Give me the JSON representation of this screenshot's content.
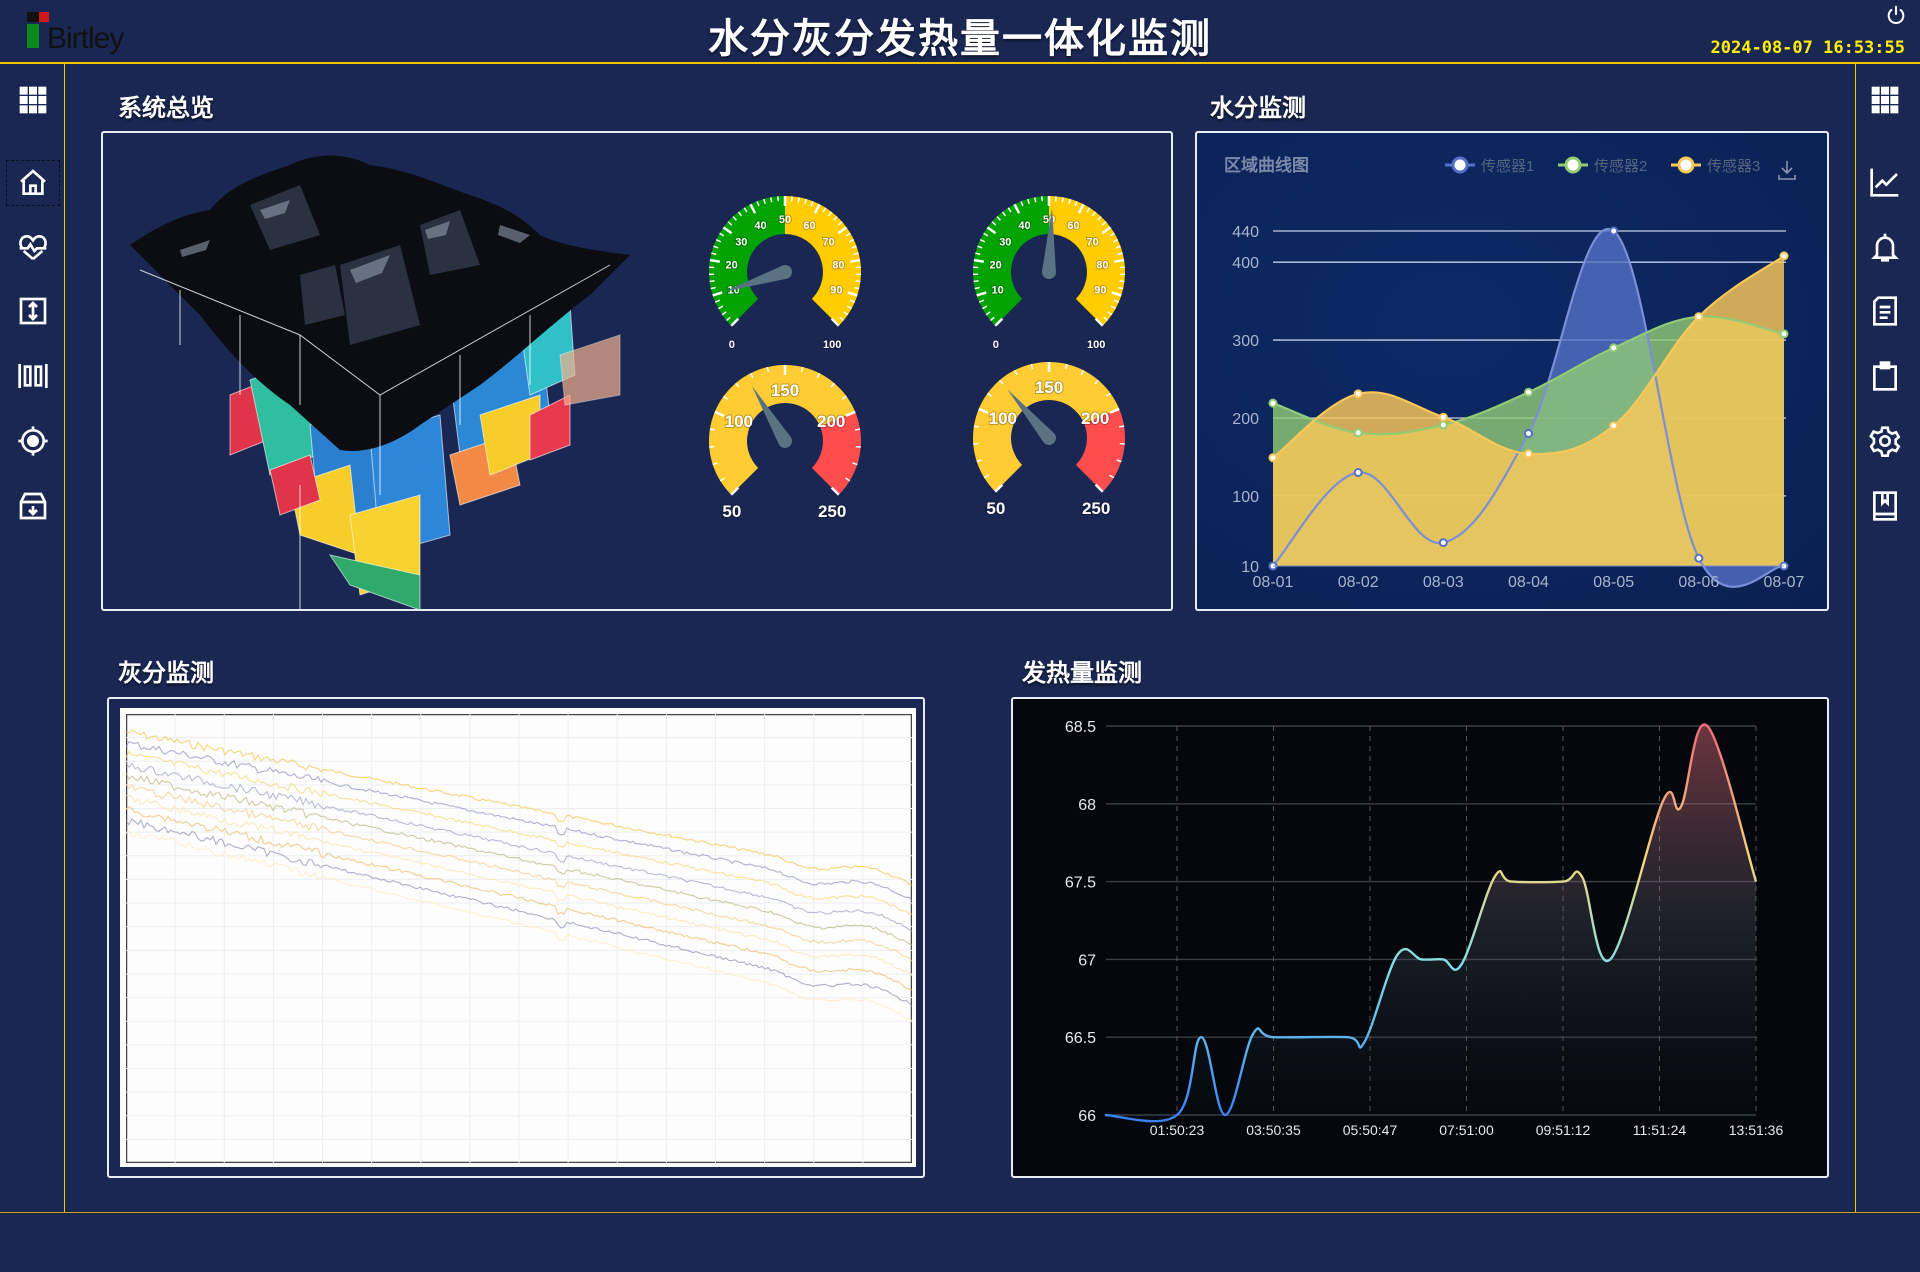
{
  "header": {
    "logo_text": "Birtley",
    "title": "水分灰分发热量一体化监测",
    "datetime": "2024-08-07  16:53:55",
    "power_icon": "power-icon"
  },
  "left_sidebar": {
    "items": [
      {
        "icon": "grid-menu-icon"
      },
      {
        "icon": "home-icon",
        "active": true
      },
      {
        "icon": "heart-pulse-icon"
      },
      {
        "icon": "expand-vertical-icon"
      },
      {
        "icon": "columns-icon"
      },
      {
        "icon": "locate-icon"
      },
      {
        "icon": "archive-download-icon"
      }
    ]
  },
  "right_sidebar": {
    "items": [
      {
        "icon": "grid-menu-icon"
      },
      {
        "icon": "line-chart-icon"
      },
      {
        "icon": "bell-icon"
      },
      {
        "icon": "document-icon"
      },
      {
        "icon": "clipboard-icon"
      },
      {
        "icon": "settings-icon"
      },
      {
        "icon": "book-icon"
      }
    ]
  },
  "sections": {
    "overview": "系统总览",
    "moisture": "水分监测",
    "ash": "灰分监测",
    "heat": "发热量监测"
  },
  "gauges": [
    {
      "min": 0,
      "max": 100,
      "value": 10,
      "labels": [
        0,
        10,
        20,
        30,
        40,
        50,
        60,
        70,
        80,
        90,
        100
      ],
      "bands": [
        {
          "to": 50,
          "color": "#00a300"
        },
        {
          "to": 100,
          "color": "#ffcc00"
        }
      ]
    },
    {
      "min": 0,
      "max": 100,
      "value": 51,
      "labels": [
        0,
        10,
        20,
        30,
        40,
        50,
        60,
        70,
        80,
        90,
        100
      ],
      "bands": [
        {
          "to": 50,
          "color": "#00a300"
        },
        {
          "to": 100,
          "color": "#ffcc00"
        }
      ]
    },
    {
      "min": 50,
      "max": 250,
      "value": 127,
      "labels": [
        50,
        100,
        150,
        200,
        250
      ],
      "bands": [
        {
          "to": 200,
          "color": "#ffcd33"
        },
        {
          "to": 250,
          "color": "#ff4d4d"
        }
      ]
    },
    {
      "min": 50,
      "max": 250,
      "value": 120,
      "labels": [
        50,
        100,
        150,
        200,
        250
      ],
      "bands": [
        {
          "to": 200,
          "color": "#ffcd33"
        },
        {
          "to": 250,
          "color": "#ff4d4d"
        }
      ]
    }
  ],
  "ash_chart": {
    "line_colors": [
      "#f5c242",
      "#8a90b8",
      "#f7d66b",
      "#9aa0c0",
      "#b9b37a",
      "#f6c978",
      "#fbe3a0",
      "#f0b860",
      "#8c8fb0",
      "#fde9b8"
    ]
  },
  "chart_data": [
    {
      "type": "area",
      "title": "区域曲线图",
      "categories": [
        "08-01",
        "08-02",
        "08-03",
        "08-04",
        "08-05",
        "08-06",
        "08-07"
      ],
      "yticks": [
        10,
        100,
        200,
        300,
        400,
        440
      ],
      "ylim": [
        10,
        440
      ],
      "grid": true,
      "legend_position": "top-right",
      "download_icon": "download-icon",
      "series": [
        {
          "name": "传感器1",
          "color": "#5470c6",
          "values": [
            10,
            130,
            40,
            180,
            440,
            20,
            10
          ]
        },
        {
          "name": "传感器2",
          "color": "#91cc75",
          "values": [
            219,
            181,
            191,
            233,
            290,
            330,
            308
          ]
        },
        {
          "name": "传感器3",
          "color": "#fac858",
          "values": [
            149,
            231,
            201,
            154,
            190,
            330,
            408
          ]
        }
      ]
    },
    {
      "type": "line",
      "xticks": [
        "01:50:23",
        "03:50:35",
        "05:50:47",
        "07:51:00",
        "09:51:12",
        "11:51:24",
        "13:51:36"
      ],
      "yticks": [
        66,
        66.5,
        67,
        67.5,
        68,
        68.5
      ],
      "ylim": [
        66,
        68.5
      ],
      "grid": true,
      "colors": {
        "low": "#3b82f6",
        "mid": "#7ee0e8",
        "high_mid": "#f5d77a",
        "high": "#f06b7a"
      },
      "points": [
        [
          "00:20:23",
          66
        ],
        [
          "01:50:23",
          66
        ],
        [
          "02:20:30",
          66.5
        ],
        [
          "02:50:30",
          66
        ],
        [
          "03:25:00",
          66.52
        ],
        [
          "03:50:35",
          66.5
        ],
        [
          "05:23:00",
          66.5
        ],
        [
          "05:44:00",
          66.47
        ],
        [
          "06:25:00",
          67.03
        ],
        [
          "06:55:00",
          67.0
        ],
        [
          "07:22:00",
          67.0
        ],
        [
          "07:45:00",
          66.97
        ],
        [
          "08:26:00",
          67.53
        ],
        [
          "08:47:00",
          67.5
        ],
        [
          "09:51:12",
          67.5
        ],
        [
          "10:15:00",
          67.53
        ],
        [
          "10:50:00",
          67.0
        ],
        [
          "11:56:00",
          68.02
        ],
        [
          "12:18:00",
          67.98
        ],
        [
          "12:51:00",
          68.5
        ],
        [
          "13:51:36",
          67.5
        ]
      ]
    }
  ]
}
